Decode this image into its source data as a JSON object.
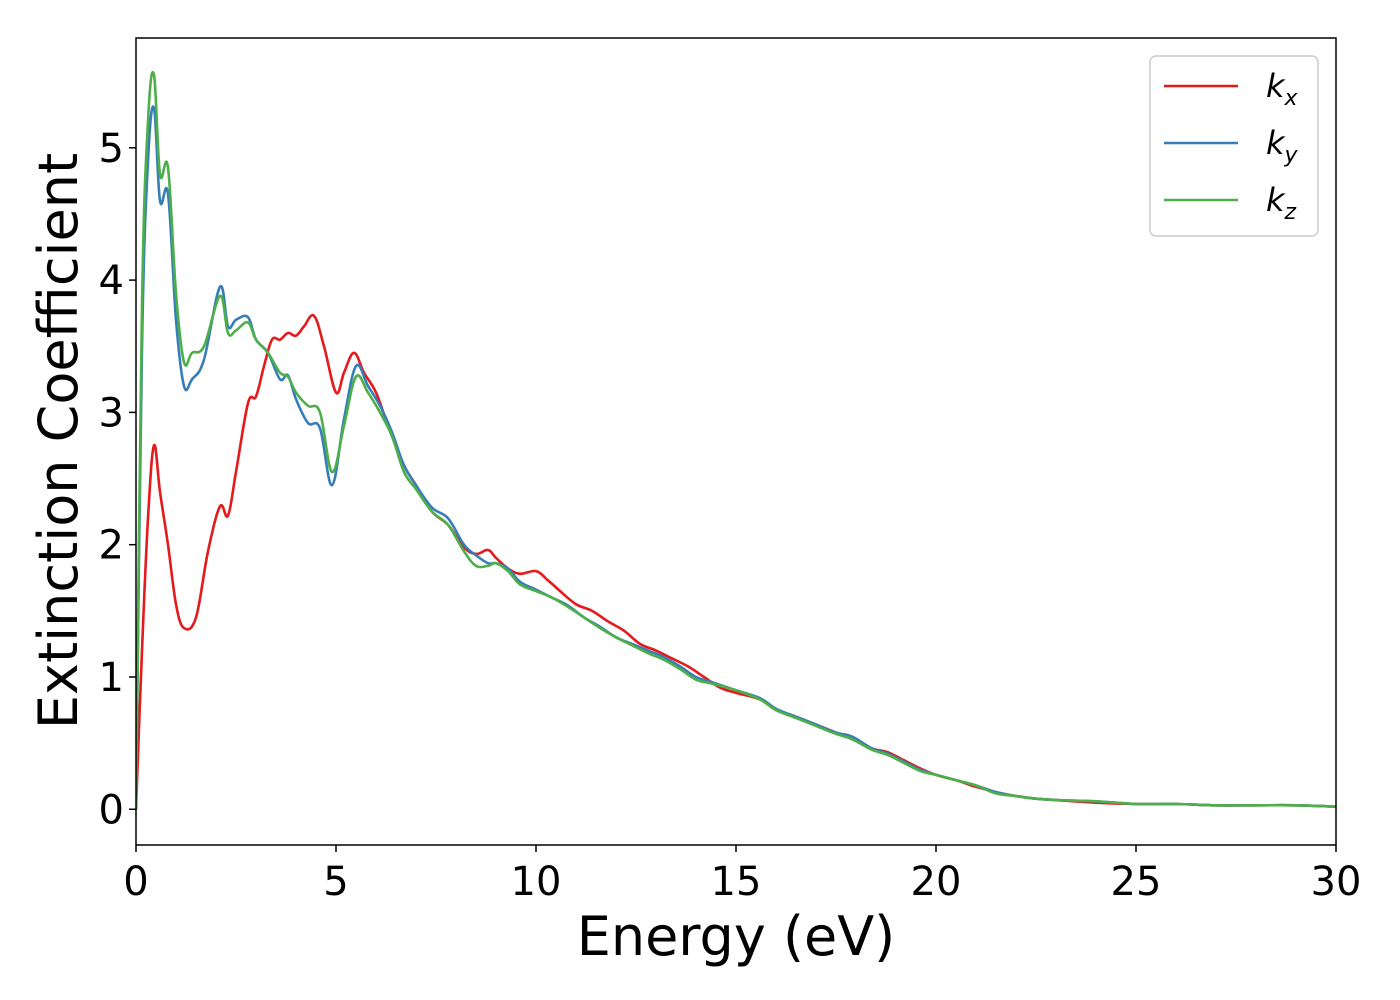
{
  "chart_data": {
    "type": "line",
    "xlabel": "Energy (eV)",
    "ylabel": "Extinction Coefficient",
    "xlim": [
      0,
      30
    ],
    "ylim": [
      -0.27,
      5.83
    ],
    "xticks": [
      0,
      5,
      10,
      15,
      20,
      25,
      30
    ],
    "yticks": [
      0,
      1,
      2,
      3,
      4,
      5
    ],
    "grid": false,
    "legend_position": "top-right",
    "series": [
      {
        "name": "k",
        "subscript": "x",
        "color": "#e41a1c",
        "x": [
          0,
          0.15,
          0.3,
          0.45,
          0.6,
          0.8,
          1.0,
          1.2,
          1.5,
          1.8,
          2.1,
          2.3,
          2.5,
          2.8,
          3.0,
          3.2,
          3.4,
          3.6,
          3.8,
          4.0,
          4.2,
          4.45,
          4.7,
          5.0,
          5.2,
          5.45,
          5.7,
          6.0,
          6.3,
          6.7,
          7.0,
          7.4,
          7.8,
          8.2,
          8.5,
          8.8,
          9.0,
          9.3,
          9.6,
          10.0,
          10.3,
          10.6,
          11.0,
          11.4,
          11.8,
          12.2,
          12.6,
          13.0,
          13.4,
          13.8,
          14.2,
          14.6,
          15.0,
          15.6,
          16.0,
          16.5,
          17.0,
          17.5,
          17.9,
          18.4,
          18.8,
          19.2,
          19.6,
          20.0,
          20.5,
          21.0,
          21.5,
          22.0,
          22.5,
          23.0,
          24.0,
          25.0,
          26.0,
          27.0,
          28.0,
          29.0,
          30.0
        ],
        "values": [
          0.0,
          1.2,
          2.2,
          2.75,
          2.4,
          2.0,
          1.55,
          1.37,
          1.45,
          1.95,
          2.29,
          2.22,
          2.55,
          3.07,
          3.12,
          3.35,
          3.55,
          3.55,
          3.6,
          3.58,
          3.65,
          3.73,
          3.5,
          3.15,
          3.3,
          3.45,
          3.3,
          3.15,
          2.9,
          2.6,
          2.45,
          2.25,
          2.15,
          1.98,
          1.93,
          1.96,
          1.9,
          1.82,
          1.78,
          1.8,
          1.73,
          1.65,
          1.55,
          1.5,
          1.42,
          1.35,
          1.25,
          1.2,
          1.14,
          1.08,
          1.0,
          0.92,
          0.88,
          0.83,
          0.75,
          0.7,
          0.64,
          0.58,
          0.53,
          0.46,
          0.43,
          0.37,
          0.31,
          0.26,
          0.22,
          0.17,
          0.13,
          0.1,
          0.08,
          0.07,
          0.05,
          0.04,
          0.04,
          0.03,
          0.03,
          0.03,
          0.02
        ]
      },
      {
        "name": "k",
        "subscript": "y",
        "color": "#377eb8",
        "x": [
          0,
          0.15,
          0.3,
          0.45,
          0.6,
          0.8,
          1.0,
          1.2,
          1.4,
          1.7,
          2.1,
          2.3,
          2.5,
          2.8,
          3.0,
          3.3,
          3.6,
          3.8,
          4.0,
          4.3,
          4.6,
          4.9,
          5.2,
          5.5,
          5.8,
          6.1,
          6.4,
          6.7,
          7.0,
          7.4,
          7.8,
          8.2,
          8.5,
          8.8,
          9.0,
          9.3,
          9.6,
          10.0,
          10.4,
          10.8,
          11.2,
          11.6,
          12.0,
          12.4,
          12.8,
          13.2,
          13.6,
          14.0,
          14.4,
          15.0,
          15.6,
          16.0,
          16.5,
          17.0,
          17.5,
          17.9,
          18.4,
          18.8,
          19.2,
          19.6,
          20.0,
          20.5,
          21.0,
          21.5,
          22.0,
          22.5,
          23.0,
          24.0,
          25.0,
          26.0,
          27.0,
          28.0,
          29.0,
          30.0
        ],
        "values": [
          0.0,
          3.5,
          4.9,
          5.3,
          4.6,
          4.65,
          3.7,
          3.2,
          3.25,
          3.4,
          3.95,
          3.65,
          3.7,
          3.72,
          3.55,
          3.45,
          3.25,
          3.28,
          3.1,
          2.92,
          2.88,
          2.45,
          2.95,
          3.35,
          3.2,
          3.05,
          2.85,
          2.6,
          2.45,
          2.28,
          2.2,
          2.0,
          1.92,
          1.86,
          1.86,
          1.82,
          1.72,
          1.66,
          1.6,
          1.54,
          1.45,
          1.38,
          1.3,
          1.25,
          1.2,
          1.15,
          1.08,
          1.0,
          0.96,
          0.9,
          0.84,
          0.76,
          0.7,
          0.64,
          0.58,
          0.55,
          0.46,
          0.42,
          0.36,
          0.3,
          0.26,
          0.22,
          0.18,
          0.13,
          0.1,
          0.08,
          0.07,
          0.06,
          0.04,
          0.04,
          0.03,
          0.03,
          0.03,
          0.02
        ]
      },
      {
        "name": "k",
        "subscript": "z",
        "color": "#4daf4a",
        "x": [
          0,
          0.15,
          0.3,
          0.45,
          0.6,
          0.8,
          1.0,
          1.2,
          1.4,
          1.7,
          2.1,
          2.3,
          2.5,
          2.8,
          3.0,
          3.3,
          3.6,
          3.8,
          4.0,
          4.3,
          4.6,
          4.9,
          5.2,
          5.5,
          5.8,
          6.1,
          6.4,
          6.7,
          7.0,
          7.4,
          7.8,
          8.2,
          8.5,
          8.8,
          9.0,
          9.3,
          9.6,
          10.0,
          10.4,
          10.8,
          11.2,
          11.6,
          12.0,
          12.4,
          12.8,
          13.2,
          13.6,
          14.0,
          14.4,
          15.0,
          15.6,
          16.0,
          16.5,
          17.0,
          17.5,
          17.9,
          18.4,
          18.8,
          19.2,
          19.6,
          20.0,
          20.5,
          21.0,
          21.5,
          22.0,
          22.5,
          23.0,
          24.0,
          25.0,
          26.0,
          27.0,
          28.0,
          29.0,
          30.0
        ],
        "values": [
          0.0,
          3.8,
          5.2,
          5.55,
          4.8,
          4.85,
          3.9,
          3.38,
          3.45,
          3.5,
          3.88,
          3.6,
          3.62,
          3.68,
          3.55,
          3.45,
          3.3,
          3.27,
          3.15,
          3.05,
          3.0,
          2.55,
          2.9,
          3.27,
          3.15,
          3.0,
          2.82,
          2.55,
          2.42,
          2.25,
          2.15,
          1.95,
          1.84,
          1.84,
          1.86,
          1.8,
          1.7,
          1.65,
          1.6,
          1.53,
          1.45,
          1.37,
          1.3,
          1.24,
          1.18,
          1.13,
          1.06,
          0.98,
          0.95,
          0.9,
          0.83,
          0.75,
          0.69,
          0.63,
          0.57,
          0.53,
          0.45,
          0.41,
          0.35,
          0.29,
          0.26,
          0.22,
          0.18,
          0.12,
          0.1,
          0.08,
          0.07,
          0.06,
          0.04,
          0.04,
          0.03,
          0.03,
          0.03,
          0.02
        ]
      }
    ]
  }
}
